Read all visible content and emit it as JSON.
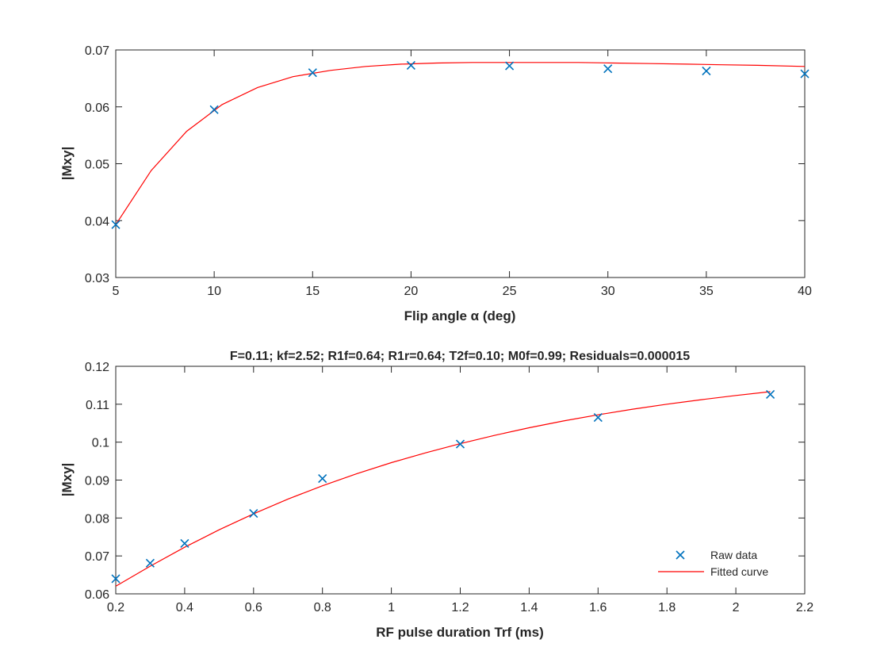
{
  "colors": {
    "raw_marker": "#0072BD",
    "fit_line": "#FF0000",
    "axes": "#262626",
    "legend_border": "#FFFFFF"
  },
  "chart_data": [
    {
      "type": "line",
      "title": "",
      "xlabel": "Flip angle α (deg)",
      "ylabel": "|Mxy|",
      "xlim": [
        5,
        40
      ],
      "ylim": [
        0.03,
        0.07
      ],
      "xticks": [
        5,
        10,
        15,
        20,
        25,
        30,
        35,
        40
      ],
      "yticks": [
        0.03,
        0.04,
        0.05,
        0.06,
        0.07
      ],
      "xtick_labels": [
        "5",
        "10",
        "15",
        "20",
        "25",
        "30",
        "35",
        "40"
      ],
      "ytick_labels": [
        "0.03",
        "0.04",
        "0.05",
        "0.06",
        "0.07"
      ],
      "grid": false,
      "series": [
        {
          "kind": "scatter",
          "marker": "x",
          "x": [
            5,
            10,
            15,
            20,
            25,
            30,
            35,
            40
          ],
          "y": [
            0.0393,
            0.0595,
            0.066,
            0.0673,
            0.0672,
            0.0667,
            0.0663,
            0.0658
          ]
        },
        {
          "kind": "line",
          "x": [
            5,
            6.8,
            8.6,
            10.4,
            12.2,
            14.0,
            15.9,
            17.7,
            19.5,
            21.3,
            23.1,
            24.9,
            26.7,
            28.5,
            30.3,
            32.2,
            34.0,
            35.8,
            37.6,
            40
          ],
          "y": [
            0.0393,
            0.0488,
            0.0557,
            0.0604,
            0.0634,
            0.0653,
            0.0664,
            0.0671,
            0.0675,
            0.0677,
            0.0678,
            0.0678,
            0.0678,
            0.0678,
            0.0677,
            0.0676,
            0.0675,
            0.0674,
            0.0673,
            0.0671
          ]
        }
      ]
    },
    {
      "type": "line",
      "title": "F=0.11; kf=2.52; R1f=0.64; R1r=0.64; T2f=0.10; M0f=0.99; Residuals=0.000015",
      "xlabel": "RF pulse duration Trf (ms)",
      "ylabel": "|Mxy|",
      "xlim": [
        0.2,
        2.2
      ],
      "ylim": [
        0.06,
        0.12
      ],
      "xticks": [
        0.2,
        0.4,
        0.6,
        0.8,
        1.0,
        1.2,
        1.4,
        1.6,
        1.8,
        2.0,
        2.2
      ],
      "yticks": [
        0.06,
        0.07,
        0.08,
        0.09,
        0.1,
        0.11,
        0.12
      ],
      "xtick_labels": [
        "0.2",
        "0.4",
        "0.6",
        "0.8",
        "1",
        "1.2",
        "1.4",
        "1.6",
        "1.8",
        "2",
        "2.2"
      ],
      "ytick_labels": [
        "0.06",
        "0.07",
        "0.08",
        "0.09",
        "0.1",
        "0.11",
        "0.12"
      ],
      "grid": false,
      "legend": {
        "placement": "bottom-right",
        "entries": [
          "Raw data",
          "Fitted curve"
        ]
      },
      "series": [
        {
          "name": "Raw data",
          "kind": "scatter",
          "marker": "x",
          "x": [
            0.2,
            0.3,
            0.4,
            0.6,
            0.8,
            1.2,
            1.6,
            2.1
          ],
          "y": [
            0.064,
            0.0681,
            0.0733,
            0.0812,
            0.0904,
            0.0995,
            0.1065,
            0.1126
          ]
        },
        {
          "name": "Fitted curve",
          "kind": "line",
          "x": [
            0.2,
            0.3,
            0.4,
            0.5,
            0.6,
            0.7,
            0.8,
            0.9,
            1.0,
            1.1,
            1.2,
            1.3,
            1.4,
            1.5,
            1.6,
            1.7,
            1.8,
            1.9,
            2.0,
            2.1
          ],
          "y": [
            0.062,
            0.0673,
            0.0723,
            0.0769,
            0.0811,
            0.085,
            0.0885,
            0.0917,
            0.0946,
            0.0972,
            0.0996,
            0.1018,
            0.1038,
            0.1056,
            0.1072,
            0.1087,
            0.11,
            0.1112,
            0.1123,
            0.1133
          ]
        }
      ]
    }
  ]
}
